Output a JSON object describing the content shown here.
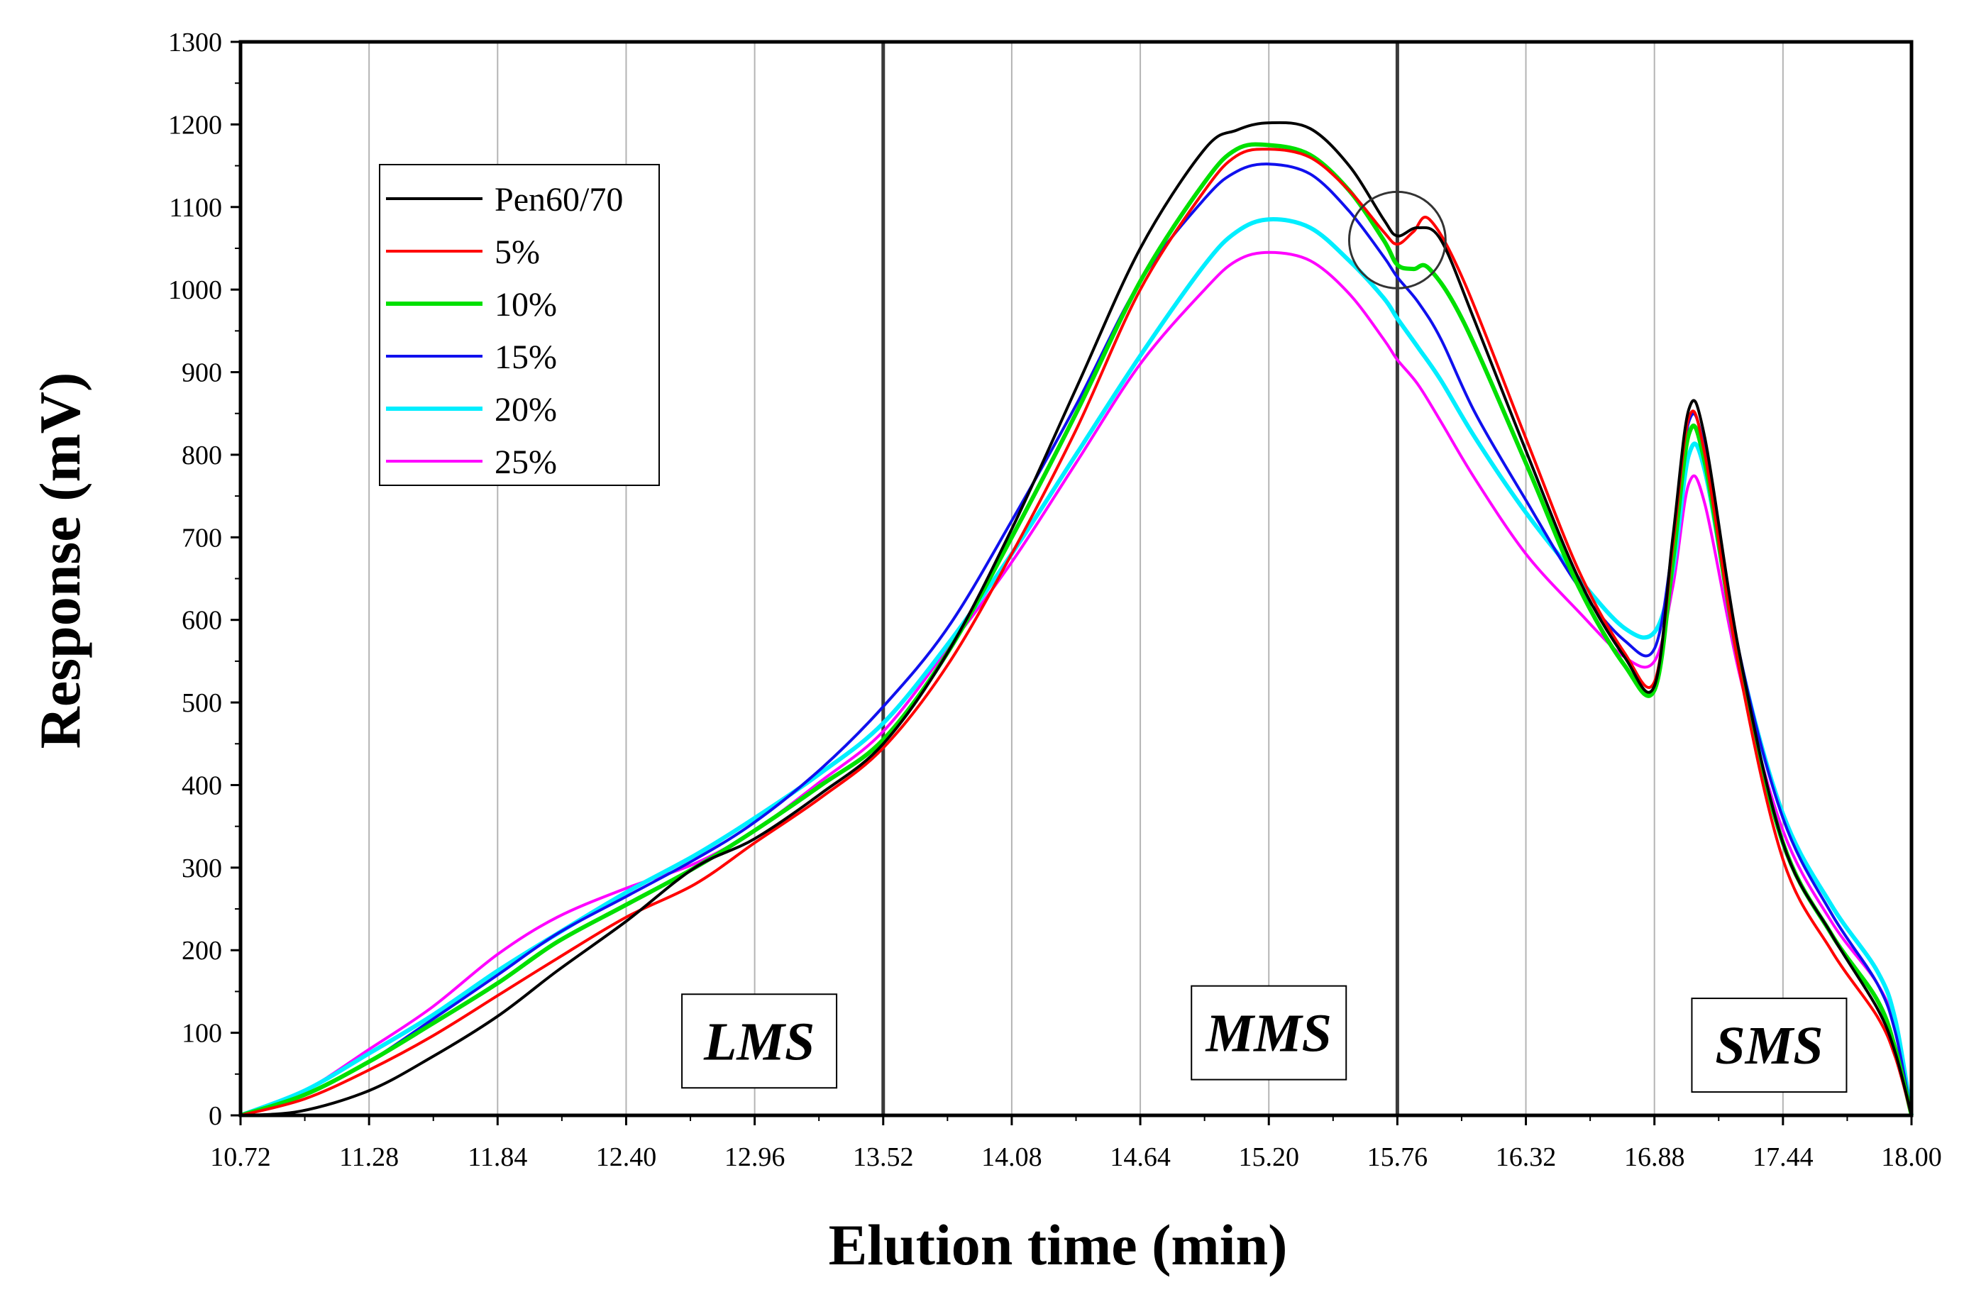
{
  "chart_data": {
    "type": "line",
    "title": "",
    "xlabel": "Elution time (min)",
    "ylabel": "Response (mV)",
    "xlim": [
      10.72,
      18.0
    ],
    "ylim": [
      0,
      1300
    ],
    "xticks": [
      "10.72",
      "11.28",
      "11.84",
      "12.40",
      "12.96",
      "13.52",
      "14.08",
      "14.64",
      "15.20",
      "15.76",
      "16.32",
      "16.88",
      "17.44",
      "18.00"
    ],
    "yticks": [
      "0",
      "100",
      "200",
      "300",
      "400",
      "500",
      "600",
      "700",
      "800",
      "900",
      "1000",
      "1100",
      "1200",
      "1300"
    ],
    "grid": "vertical",
    "region_dividers": [
      13.52,
      15.76
    ],
    "regions": [
      {
        "label": "LMS",
        "x": 12.98,
        "y": 90
      },
      {
        "label": "MMS",
        "x": 15.2,
        "y": 100
      },
      {
        "label": "SMS",
        "x": 17.38,
        "y": 85
      }
    ],
    "highlight_circle": {
      "x": 15.76,
      "y": 1060,
      "r": 0.21
    },
    "legend_position": "top-left",
    "series": [
      {
        "name": "Pen60/70",
        "color": "#000000",
        "x": [
          10.72,
          10.98,
          11.28,
          11.55,
          11.84,
          12.1,
          12.4,
          12.7,
          12.96,
          13.25,
          13.52,
          13.8,
          14.08,
          14.36,
          14.64,
          14.92,
          15.06,
          15.2,
          15.38,
          15.55,
          15.7,
          15.76,
          15.85,
          15.95,
          16.1,
          16.32,
          16.55,
          16.75,
          16.88,
          16.96,
          17.03,
          17.1,
          17.25,
          17.44,
          17.65,
          17.85,
          17.93,
          18.0
        ],
        "y": [
          0,
          5,
          30,
          70,
          120,
          175,
          235,
          300,
          335,
          390,
          450,
          560,
          710,
          880,
          1050,
          1170,
          1193,
          1202,
          1195,
          1150,
          1085,
          1065,
          1075,
          1060,
          960,
          805,
          650,
          555,
          520,
          700,
          855,
          820,
          560,
          330,
          220,
          130,
          75,
          0
        ]
      },
      {
        "name": "5%",
        "color": "#ff0000",
        "x": [
          10.72,
          11.0,
          11.28,
          11.55,
          11.84,
          12.1,
          12.4,
          12.7,
          12.96,
          13.25,
          13.52,
          13.8,
          14.08,
          14.36,
          14.64,
          14.92,
          15.06,
          15.2,
          15.38,
          15.55,
          15.7,
          15.76,
          15.83,
          15.9,
          16.05,
          16.32,
          16.55,
          16.75,
          16.88,
          16.96,
          17.03,
          17.1,
          17.25,
          17.44,
          17.65,
          17.85,
          17.93,
          18.0
        ],
        "y": [
          0,
          20,
          55,
          95,
          145,
          190,
          240,
          280,
          330,
          385,
          445,
          545,
          680,
          830,
          1000,
          1120,
          1162,
          1170,
          1160,
          1120,
          1070,
          1055,
          1070,
          1085,
          1010,
          820,
          660,
          560,
          525,
          690,
          845,
          800,
          540,
          310,
          200,
          120,
          70,
          0
        ]
      },
      {
        "name": "10%",
        "color": "#00e000",
        "x": [
          10.72,
          11.0,
          11.28,
          11.55,
          11.84,
          12.1,
          12.4,
          12.7,
          12.96,
          13.25,
          13.52,
          13.8,
          14.08,
          14.36,
          14.64,
          14.92,
          15.06,
          15.2,
          15.38,
          15.55,
          15.7,
          15.76,
          15.83,
          15.9,
          16.05,
          16.32,
          16.55,
          16.75,
          16.88,
          16.96,
          17.03,
          17.1,
          17.25,
          17.44,
          17.65,
          17.85,
          17.93,
          18.0
        ],
        "y": [
          0,
          25,
          65,
          110,
          160,
          210,
          255,
          300,
          345,
          400,
          455,
          560,
          700,
          850,
          1010,
          1130,
          1170,
          1175,
          1163,
          1120,
          1060,
          1030,
          1025,
          1025,
          960,
          790,
          640,
          545,
          515,
          670,
          825,
          790,
          545,
          330,
          220,
          140,
          80,
          0
        ]
      },
      {
        "name": "15%",
        "color": "#1010ee",
        "x": [
          10.72,
          11.0,
          11.28,
          11.55,
          11.84,
          12.1,
          12.4,
          12.7,
          12.96,
          13.25,
          13.52,
          13.8,
          14.08,
          14.36,
          14.64,
          14.92,
          15.06,
          15.2,
          15.38,
          15.55,
          15.7,
          15.76,
          15.85,
          15.95,
          16.1,
          16.32,
          16.55,
          16.75,
          16.88,
          16.96,
          17.03,
          17.1,
          17.25,
          17.44,
          17.65,
          17.85,
          17.93,
          18.0
        ],
        "y": [
          0,
          25,
          65,
          115,
          170,
          220,
          265,
          310,
          355,
          420,
          495,
          590,
          720,
          860,
          1010,
          1110,
          1143,
          1152,
          1140,
          1095,
          1040,
          1015,
          985,
          940,
          850,
          745,
          640,
          575,
          565,
          690,
          840,
          805,
          560,
          360,
          245,
          160,
          100,
          0
        ]
      },
      {
        "name": "20%",
        "color": "#00eeff",
        "x": [
          10.72,
          11.0,
          11.28,
          11.55,
          11.84,
          12.1,
          12.4,
          12.7,
          12.96,
          13.25,
          13.52,
          13.8,
          14.08,
          14.36,
          14.64,
          14.92,
          15.06,
          15.2,
          15.38,
          15.55,
          15.7,
          15.76,
          15.85,
          15.95,
          16.1,
          16.32,
          16.55,
          16.75,
          16.88,
          16.96,
          17.03,
          17.1,
          17.25,
          17.44,
          17.65,
          17.85,
          17.93,
          18.0
        ],
        "y": [
          0,
          30,
          75,
          120,
          175,
          220,
          270,
          315,
          360,
          415,
          475,
          570,
          680,
          800,
          920,
          1030,
          1070,
          1085,
          1075,
          1035,
          990,
          965,
          930,
          890,
          820,
          730,
          650,
          590,
          585,
          660,
          800,
          780,
          555,
          365,
          255,
          175,
          115,
          0
        ]
      },
      {
        "name": "25%",
        "color": "#ff00ff",
        "x": [
          10.72,
          11.0,
          11.28,
          11.55,
          11.84,
          12.1,
          12.4,
          12.7,
          12.96,
          13.25,
          13.52,
          13.8,
          14.08,
          14.36,
          14.64,
          14.92,
          15.06,
          15.2,
          15.38,
          15.55,
          15.7,
          15.76,
          15.85,
          15.95,
          16.1,
          16.32,
          16.55,
          16.75,
          16.88,
          16.96,
          17.03,
          17.1,
          17.25,
          17.44,
          17.65,
          17.85,
          17.93,
          18.0
        ],
        "y": [
          0,
          30,
          80,
          130,
          195,
          240,
          275,
          305,
          345,
          405,
          465,
          565,
          670,
          790,
          910,
          1000,
          1035,
          1045,
          1035,
          995,
          940,
          915,
          885,
          840,
          770,
          680,
          610,
          555,
          550,
          640,
          765,
          740,
          535,
          345,
          235,
          160,
          105,
          0
        ]
      }
    ]
  }
}
